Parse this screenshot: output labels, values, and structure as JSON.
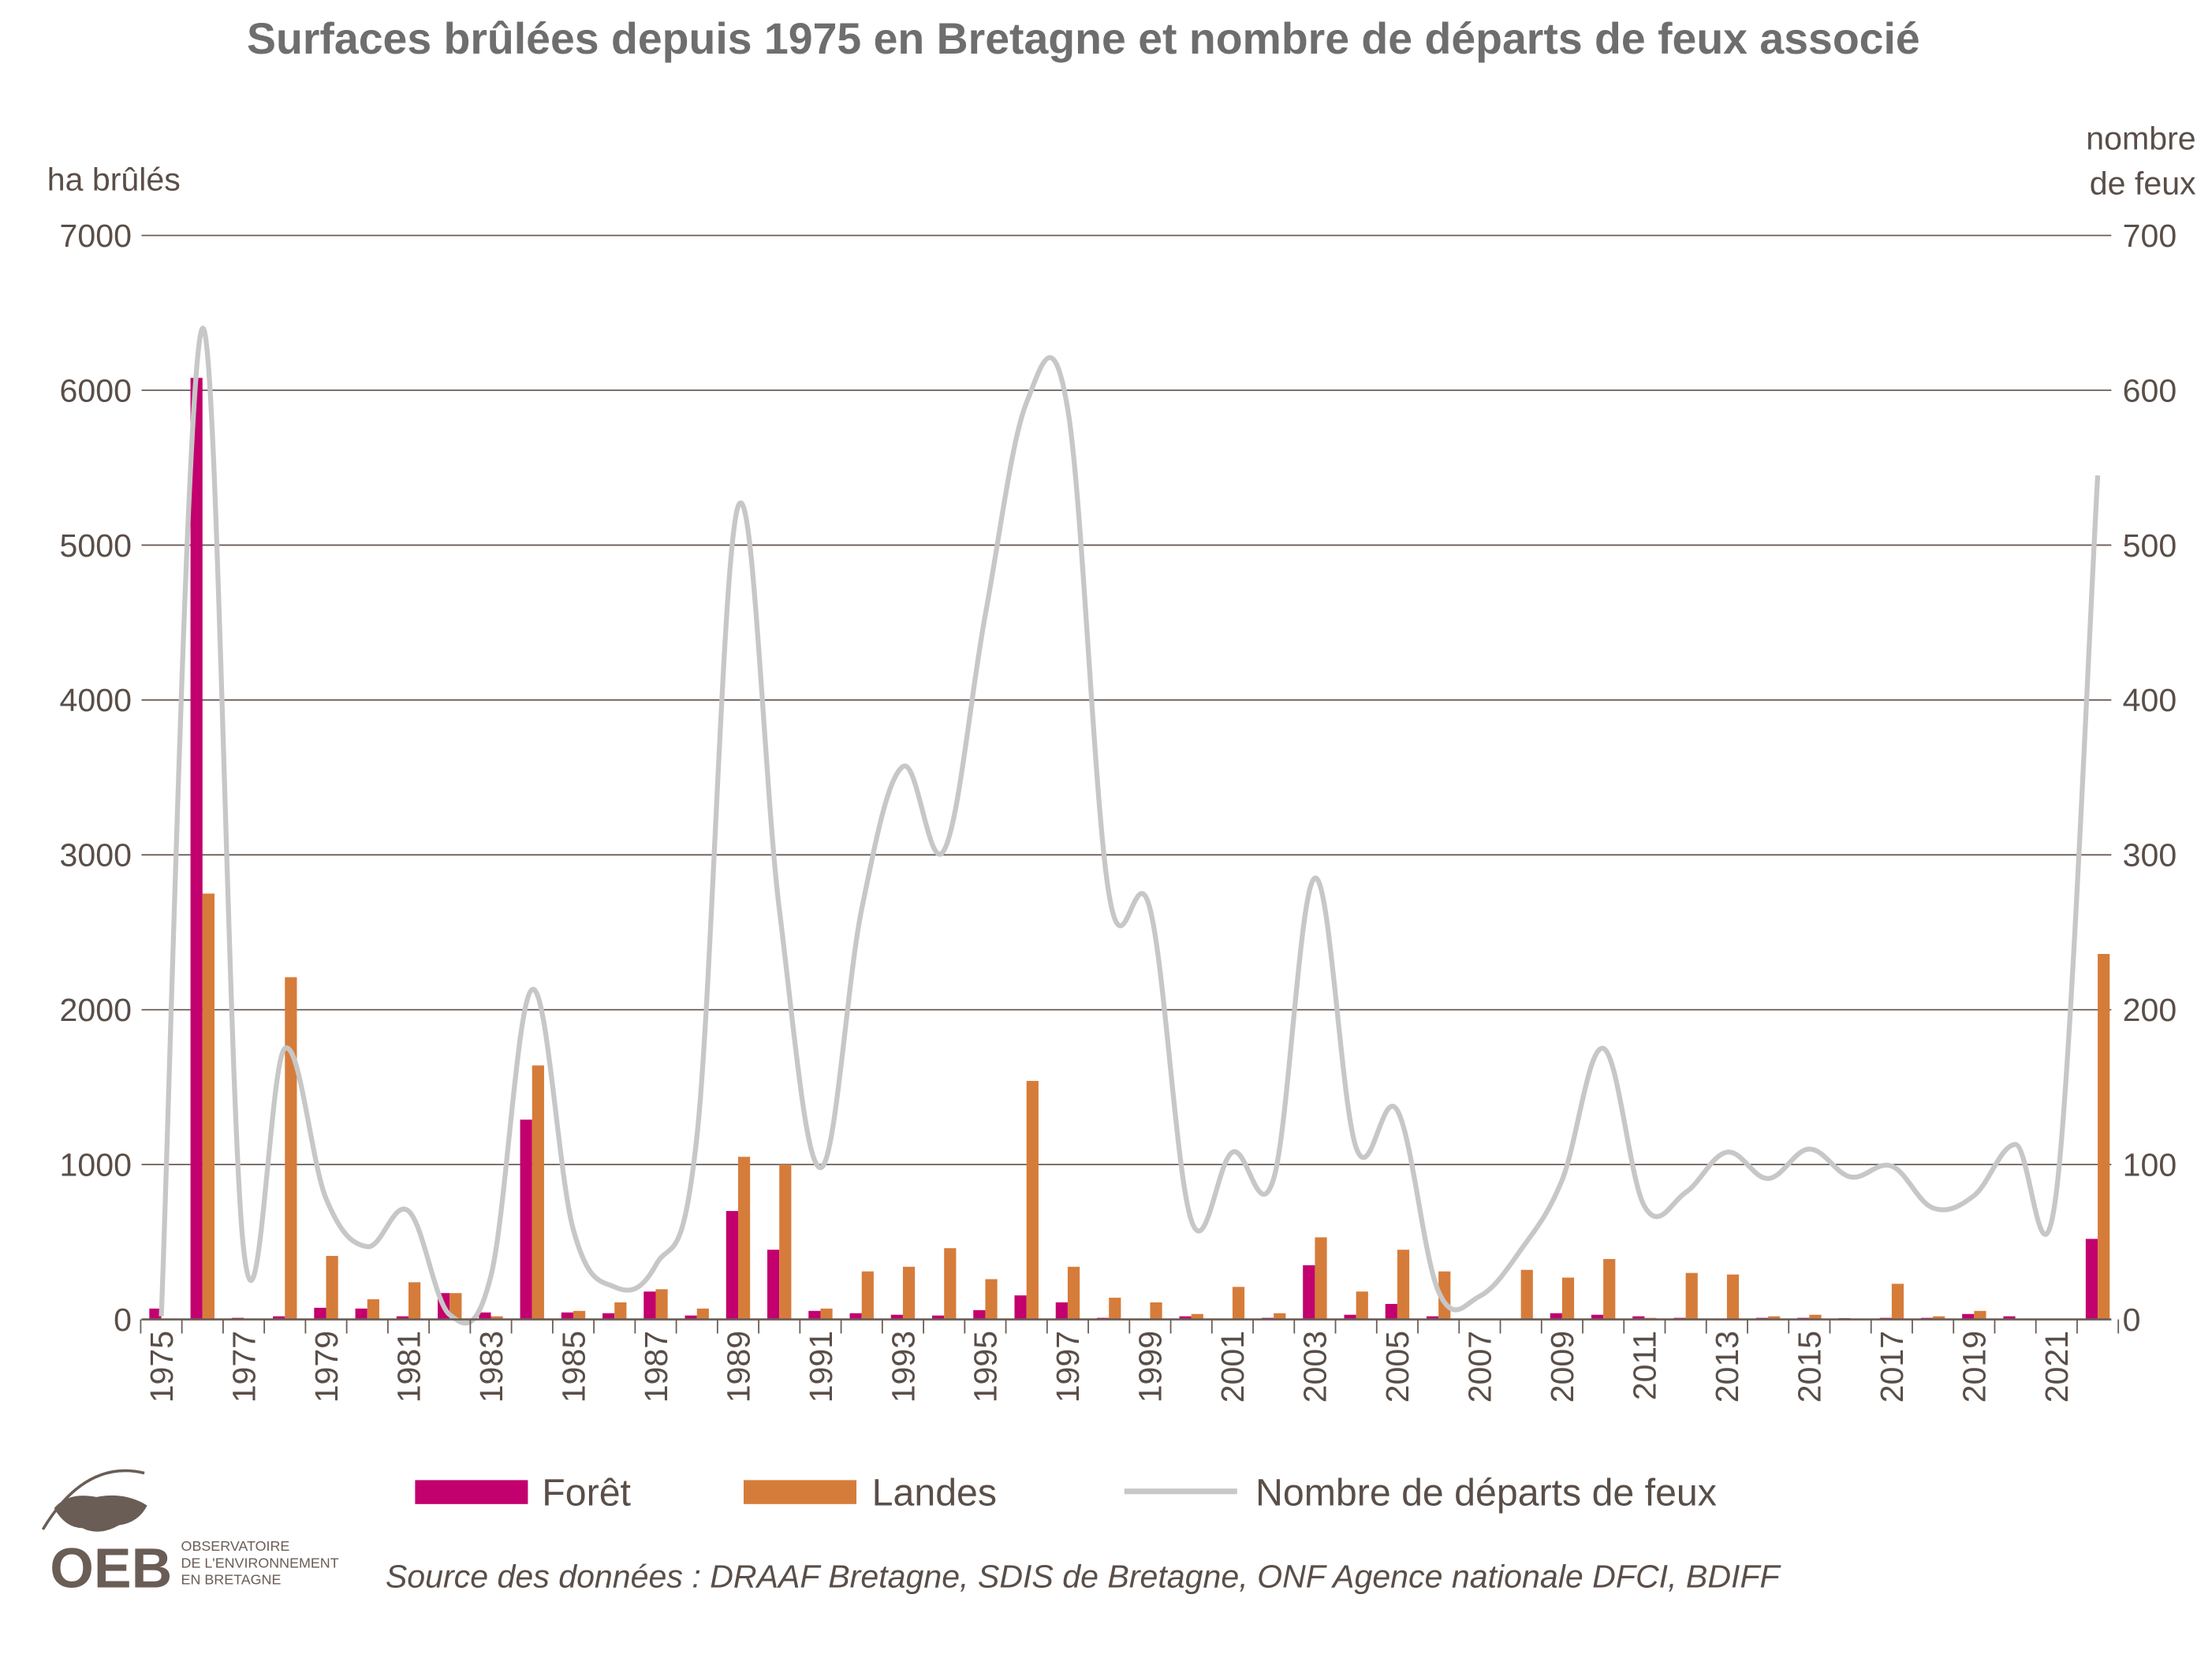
{
  "title": "Surfaces brûlées depuis 1975 en Bretagne et nombre de départs de feux associé",
  "source": "Source des données : DRAAF Bretagne, SDIS de Bretagne, ONF Agence nationale DFCI, BDIFF",
  "logo": {
    "text": "OEB",
    "subtitle_lines": [
      "OBSERVATOIRE",
      "DE L'ENVIRONNEMENT",
      "EN BRETAGNE"
    ]
  },
  "chart_data": {
    "type": "bar",
    "title": "Surfaces brûlées depuis 1975 en Bretagne et nombre de départs de feux associé",
    "ylabel": "ha brûlés",
    "y2label_lines": [
      "nombre",
      "de feux"
    ],
    "ylim": [
      0,
      7000
    ],
    "y2lim": [
      0,
      700
    ],
    "yticks": [
      0,
      1000,
      2000,
      3000,
      4000,
      5000,
      6000,
      7000
    ],
    "y2ticks": [
      0,
      100,
      200,
      300,
      400,
      500,
      600,
      700
    ],
    "grid": true,
    "legend_position": "bottom",
    "x_tick_labels": [
      "1975",
      "1977",
      "1979",
      "1981",
      "1983",
      "1985",
      "1987",
      "1989",
      "1991",
      "1993",
      "1995",
      "1997",
      "1999",
      "2001",
      "2003",
      "2005",
      "2007",
      "2009",
      "2011",
      "2013",
      "2015",
      "2017",
      "2019",
      "2021"
    ],
    "categories": [
      1975,
      1976,
      1977,
      1978,
      1979,
      1980,
      1981,
      1982,
      1983,
      1984,
      1985,
      1986,
      1987,
      1988,
      1989,
      1990,
      1991,
      1992,
      1993,
      1994,
      1995,
      1996,
      1997,
      1998,
      1999,
      2000,
      2001,
      2002,
      2003,
      2004,
      2005,
      2006,
      2007,
      2008,
      2009,
      2010,
      2011,
      2012,
      2013,
      2014,
      2015,
      2016,
      2017,
      2018,
      2019,
      2020,
      2021,
      2022
    ],
    "series": [
      {
        "name": "Forêt",
        "type": "bar",
        "axis": "left",
        "color": "#c2006e",
        "values": [
          70,
          6080,
          10,
          20,
          75,
          70,
          20,
          170,
          45,
          1290,
          45,
          40,
          180,
          25,
          700,
          450,
          55,
          40,
          30,
          25,
          60,
          155,
          110,
          10,
          5,
          20,
          3,
          10,
          350,
          30,
          100,
          20,
          3,
          2,
          40,
          30,
          20,
          10,
          3,
          10,
          10,
          8,
          10,
          10,
          35,
          20,
          3,
          520
        ]
      },
      {
        "name": "Landes",
        "type": "bar",
        "axis": "left",
        "color": "#d67c3a",
        "values": [
          0,
          2750,
          5,
          2210,
          410,
          130,
          240,
          170,
          20,
          1640,
          55,
          110,
          195,
          70,
          1050,
          1000,
          70,
          310,
          340,
          460,
          260,
          1540,
          340,
          140,
          110,
          35,
          210,
          40,
          530,
          180,
          450,
          310,
          3,
          320,
          270,
          390,
          10,
          300,
          290,
          20,
          30,
          5,
          230,
          20,
          55,
          5,
          3,
          2360
        ]
      },
      {
        "name": "Nombre de départs de feux",
        "type": "line",
        "axis": "right",
        "color": "#c6c7c6",
        "values": [
          2,
          640,
          45,
          175,
          78,
          47,
          70,
          3,
          28,
          213,
          58,
          21,
          35,
          118,
          525,
          265,
          98,
          265,
          357,
          303,
          455,
          592,
          588,
          275,
          265,
          64,
          108,
          91,
          285,
          111,
          135,
          18,
          15,
          45,
          90,
          175,
          73,
          82,
          108,
          91,
          110,
          92,
          99,
          72,
          80,
          113,
          83,
          545
        ]
      }
    ]
  }
}
